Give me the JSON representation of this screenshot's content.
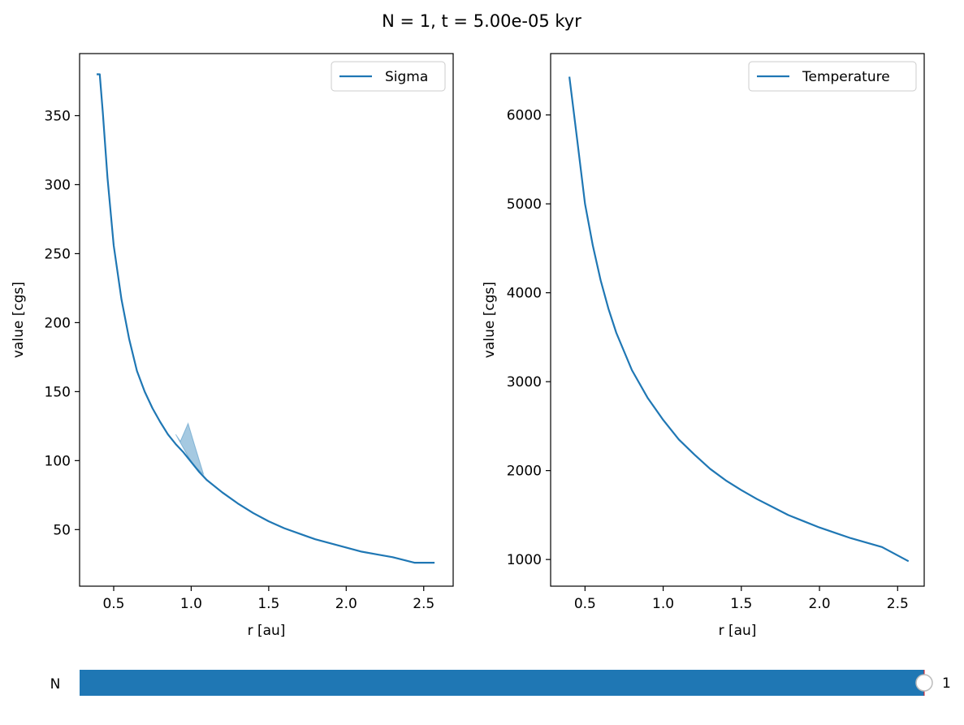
{
  "figure": {
    "suptitle": "N = 1, t = 5.00e-05 kyr"
  },
  "colors": {
    "line": "#1f77b4",
    "fill": "#1f77b4",
    "slider_track": "#1f77b4",
    "slider_handle": "#ffffff",
    "slider_handle_edge": "#bbbbbb"
  },
  "chart_data": [
    {
      "type": "line",
      "xlabel": "r [au]",
      "ylabel": "value [cgs]",
      "xlim": [
        0.28,
        2.69
      ],
      "ylim": [
        9.0,
        395.0
      ],
      "xticks": [
        0.5,
        1.0,
        1.5,
        2.0,
        2.5
      ],
      "xtick_labels": [
        "0.5",
        "1.0",
        "1.5",
        "2.0",
        "2.5"
      ],
      "yticks": [
        50,
        100,
        150,
        200,
        250,
        300,
        350
      ],
      "ytick_labels": [
        "50",
        "100",
        "150",
        "200",
        "250",
        "300",
        "350"
      ],
      "legend": {
        "position": "top-right",
        "entries": [
          "Sigma"
        ]
      },
      "series": [
        {
          "name": "Sigma",
          "x": [
            0.39,
            0.41,
            0.43,
            0.46,
            0.5,
            0.55,
            0.6,
            0.65,
            0.7,
            0.75,
            0.8,
            0.85,
            0.9,
            0.95,
            1.0,
            1.05,
            1.1,
            1.2,
            1.3,
            1.4,
            1.5,
            1.6,
            1.7,
            1.8,
            1.9,
            2.0,
            2.1,
            2.2,
            2.3,
            2.44,
            2.57
          ],
          "values": [
            380,
            380,
            352,
            305,
            256,
            217,
            188,
            165,
            150,
            138,
            128,
            119,
            112,
            106,
            99,
            92,
            86,
            77,
            69,
            62,
            56,
            51,
            47,
            43,
            40,
            37,
            34,
            32,
            30,
            26,
            26
          ]
        }
      ],
      "band": {
        "x": [
          0.9,
          0.93,
          0.98,
          1.02,
          1.08
        ],
        "upper": [
          119,
          114,
          127,
          112,
          90
        ],
        "lower": [
          119,
          113,
          103,
          96,
          90
        ]
      }
    },
    {
      "type": "line",
      "xlabel": "r [au]",
      "ylabel": "value [cgs]",
      "xlim": [
        0.28,
        2.67
      ],
      "ylim": [
        700,
        6690
      ],
      "xticks": [
        0.5,
        1.0,
        1.5,
        2.0,
        2.5
      ],
      "xtick_labels": [
        "0.5",
        "1.0",
        "1.5",
        "2.0",
        "2.5"
      ],
      "yticks": [
        1000,
        2000,
        3000,
        4000,
        5000,
        6000
      ],
      "ytick_labels": [
        "1000",
        "2000",
        "3000",
        "4000",
        "5000",
        "6000"
      ],
      "legend": {
        "position": "top-right",
        "entries": [
          "Temperature"
        ]
      },
      "series": [
        {
          "name": "Temperature",
          "x": [
            0.4,
            0.45,
            0.5,
            0.55,
            0.6,
            0.65,
            0.7,
            0.8,
            0.9,
            1.0,
            1.1,
            1.2,
            1.3,
            1.4,
            1.5,
            1.6,
            1.7,
            1.8,
            1.9,
            2.0,
            2.1,
            2.2,
            2.3,
            2.4,
            2.57
          ],
          "values": [
            6430,
            5720,
            5000,
            4530,
            4140,
            3820,
            3550,
            3130,
            2820,
            2570,
            2350,
            2180,
            2020,
            1890,
            1780,
            1680,
            1590,
            1500,
            1430,
            1360,
            1300,
            1240,
            1190,
            1140,
            980
          ]
        }
      ]
    }
  ],
  "slider": {
    "label": "N",
    "value_text": "1",
    "value": 1,
    "min": 0,
    "max": 1
  }
}
